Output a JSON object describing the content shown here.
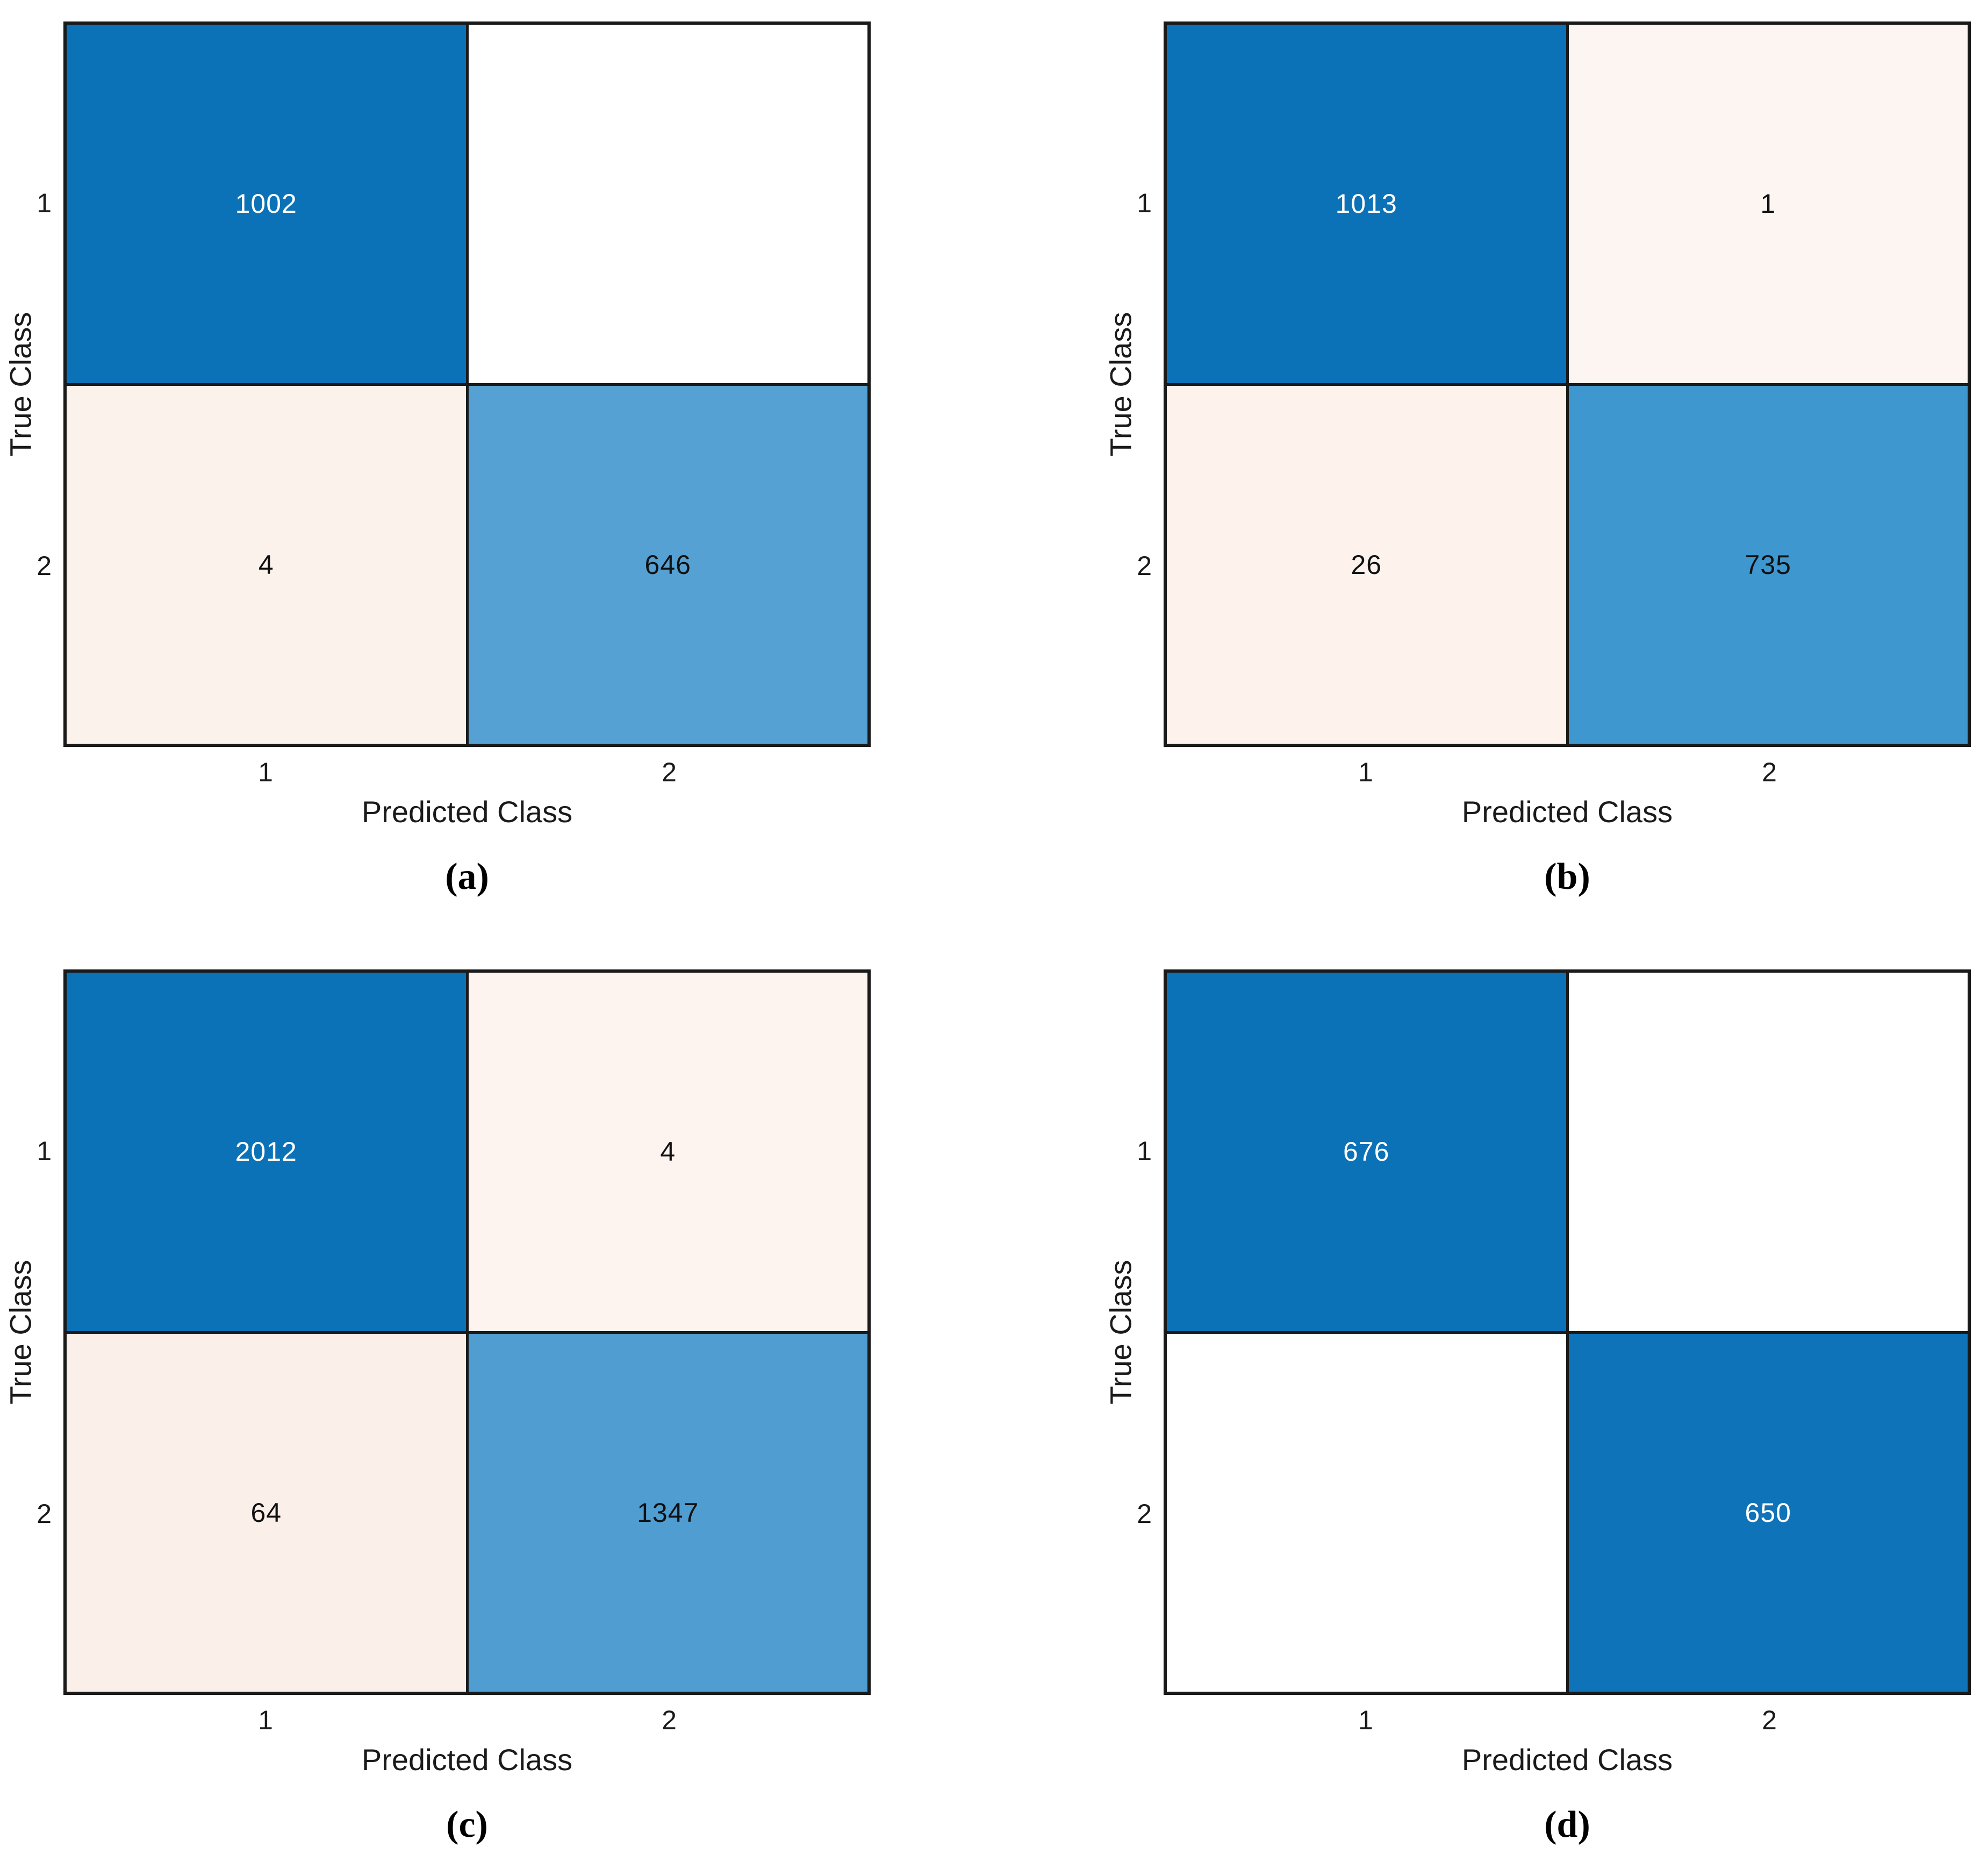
{
  "figure": {
    "description": "Four binary confusion matrix charts arranged in a 2x2 grid",
    "axis": {
      "xlabel": "Predicted Class",
      "ylabel": "True Class"
    },
    "classes": [
      "1",
      "2"
    ],
    "colors": {
      "diag_strong_blue": "#0c72b8",
      "border_black": "#1a1a1a",
      "off_diag_cream": "#fcf3ee",
      "zero_white": "#ffffff"
    }
  },
  "chart_data": [
    {
      "type": "heatmap",
      "panel_label": "(a)",
      "xlabel": "Predicted Class",
      "ylabel": "True Class",
      "rows": [
        "1",
        "2"
      ],
      "cols": [
        "1",
        "2"
      ],
      "values": [
        [
          1002,
          0
        ],
        [
          4,
          646
        ]
      ],
      "display": [
        [
          "1002",
          ""
        ],
        [
          "4",
          "646"
        ]
      ],
      "cell_colors": [
        [
          "#0c72b8",
          "#ffffff"
        ],
        [
          "#fcf2ec",
          "#56a1d3"
        ]
      ],
      "text_colors": [
        [
          "#ffffff",
          "#111111"
        ],
        [
          "#111111",
          "#111111"
        ]
      ]
    },
    {
      "type": "heatmap",
      "panel_label": "(b)",
      "xlabel": "Predicted Class",
      "ylabel": "True Class",
      "rows": [
        "1",
        "2"
      ],
      "cols": [
        "1",
        "2"
      ],
      "values": [
        [
          1013,
          1
        ],
        [
          26,
          735
        ]
      ],
      "display": [
        [
          "1013",
          "1"
        ],
        [
          "26",
          "735"
        ]
      ],
      "cell_colors": [
        [
          "#0c72b8",
          "#fdf5f1"
        ],
        [
          "#fdf2ec",
          "#3f97cf"
        ]
      ],
      "text_colors": [
        [
          "#ffffff",
          "#111111"
        ],
        [
          "#111111",
          "#111111"
        ]
      ]
    },
    {
      "type": "heatmap",
      "panel_label": "(c)",
      "xlabel": "Predicted Class",
      "ylabel": "True Class",
      "rows": [
        "1",
        "2"
      ],
      "cols": [
        "1",
        "2"
      ],
      "values": [
        [
          2012,
          4
        ],
        [
          64,
          1347
        ]
      ],
      "display": [
        [
          "2012",
          "4"
        ],
        [
          "64",
          "1347"
        ]
      ],
      "cell_colors": [
        [
          "#0c72b8",
          "#fdf4f0"
        ],
        [
          "#fbf0e9",
          "#4f9dd1"
        ]
      ],
      "text_colors": [
        [
          "#ffffff",
          "#111111"
        ],
        [
          "#111111",
          "#111111"
        ]
      ]
    },
    {
      "type": "heatmap",
      "panel_label": "(d)",
      "xlabel": "Predicted Class",
      "ylabel": "True Class",
      "rows": [
        "1",
        "2"
      ],
      "cols": [
        "1",
        "2"
      ],
      "values": [
        [
          676,
          0
        ],
        [
          0,
          650
        ]
      ],
      "display": [
        [
          "676",
          ""
        ],
        [
          "",
          "650"
        ]
      ],
      "cell_colors": [
        [
          "#0c72b8",
          "#ffffff"
        ],
        [
          "#ffffff",
          "#0e73b9"
        ]
      ],
      "text_colors": [
        [
          "#ffffff",
          "#111111"
        ],
        [
          "#111111",
          "#ffffff"
        ]
      ]
    }
  ]
}
